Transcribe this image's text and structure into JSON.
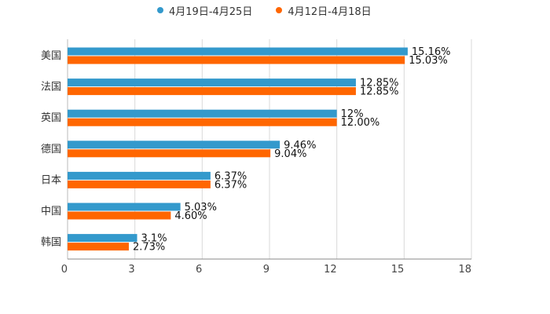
{
  "chart_data": {
    "type": "bar",
    "orientation": "horizontal",
    "title": "",
    "xlabel": "",
    "ylabel": "",
    "xlim": [
      0,
      18
    ],
    "ticks": [
      "0",
      "3",
      "6",
      "9",
      "12",
      "15",
      "18"
    ],
    "tick_values": [
      0,
      3,
      6,
      9,
      12,
      15,
      18
    ],
    "grid": true,
    "legend_position": "top-center",
    "categories": [
      "美国",
      "法国",
      "英国",
      "德国",
      "日本",
      "中国",
      "韩国"
    ],
    "series": [
      {
        "name": "4月19日-4月25日",
        "color": "#3399cc",
        "values": [
          15.16,
          12.85,
          12,
          9.46,
          6.37,
          5.03,
          3.1
        ],
        "labels": [
          "15.16%",
          "12.85%",
          "12%",
          "9.46%",
          "6.37%",
          "5.03%",
          "3.1%"
        ]
      },
      {
        "name": "4月12日-4月18日",
        "color": "#ff6600",
        "values": [
          15.03,
          12.85,
          12.0,
          9.04,
          6.37,
          4.6,
          2.73
        ],
        "labels": [
          "15.03%",
          "12.85%",
          "12.00%",
          "9.04%",
          "6.37%",
          "4.60%",
          "2.73%"
        ]
      }
    ]
  }
}
